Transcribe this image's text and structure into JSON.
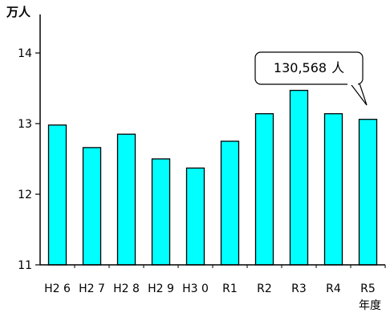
{
  "chart_data": {
    "type": "bar",
    "title": "",
    "ylabel": "万人",
    "xlabel": "年度",
    "categories": [
      "H26",
      "H27",
      "H28",
      "H29",
      "H30",
      "R1",
      "R2",
      "R3",
      "R4",
      "R5"
    ],
    "category_labels": [
      "H2 6",
      "H2 7",
      "H2 8",
      "H2 9",
      "H3 0",
      "R1",
      "R2",
      "R3",
      "R4",
      "R5"
    ],
    "values": [
      12.98,
      12.66,
      12.85,
      12.5,
      12.37,
      12.75,
      13.14,
      13.47,
      13.14,
      13.06
    ],
    "ylim": [
      11,
      14
    ],
    "yticks": [
      11,
      12,
      13,
      14
    ],
    "grid": false,
    "bar_color": "#00ffff",
    "bar_edge_color": "#000000",
    "annotation": {
      "number": "130,568",
      "unit": "人",
      "target_category": "R5"
    }
  }
}
